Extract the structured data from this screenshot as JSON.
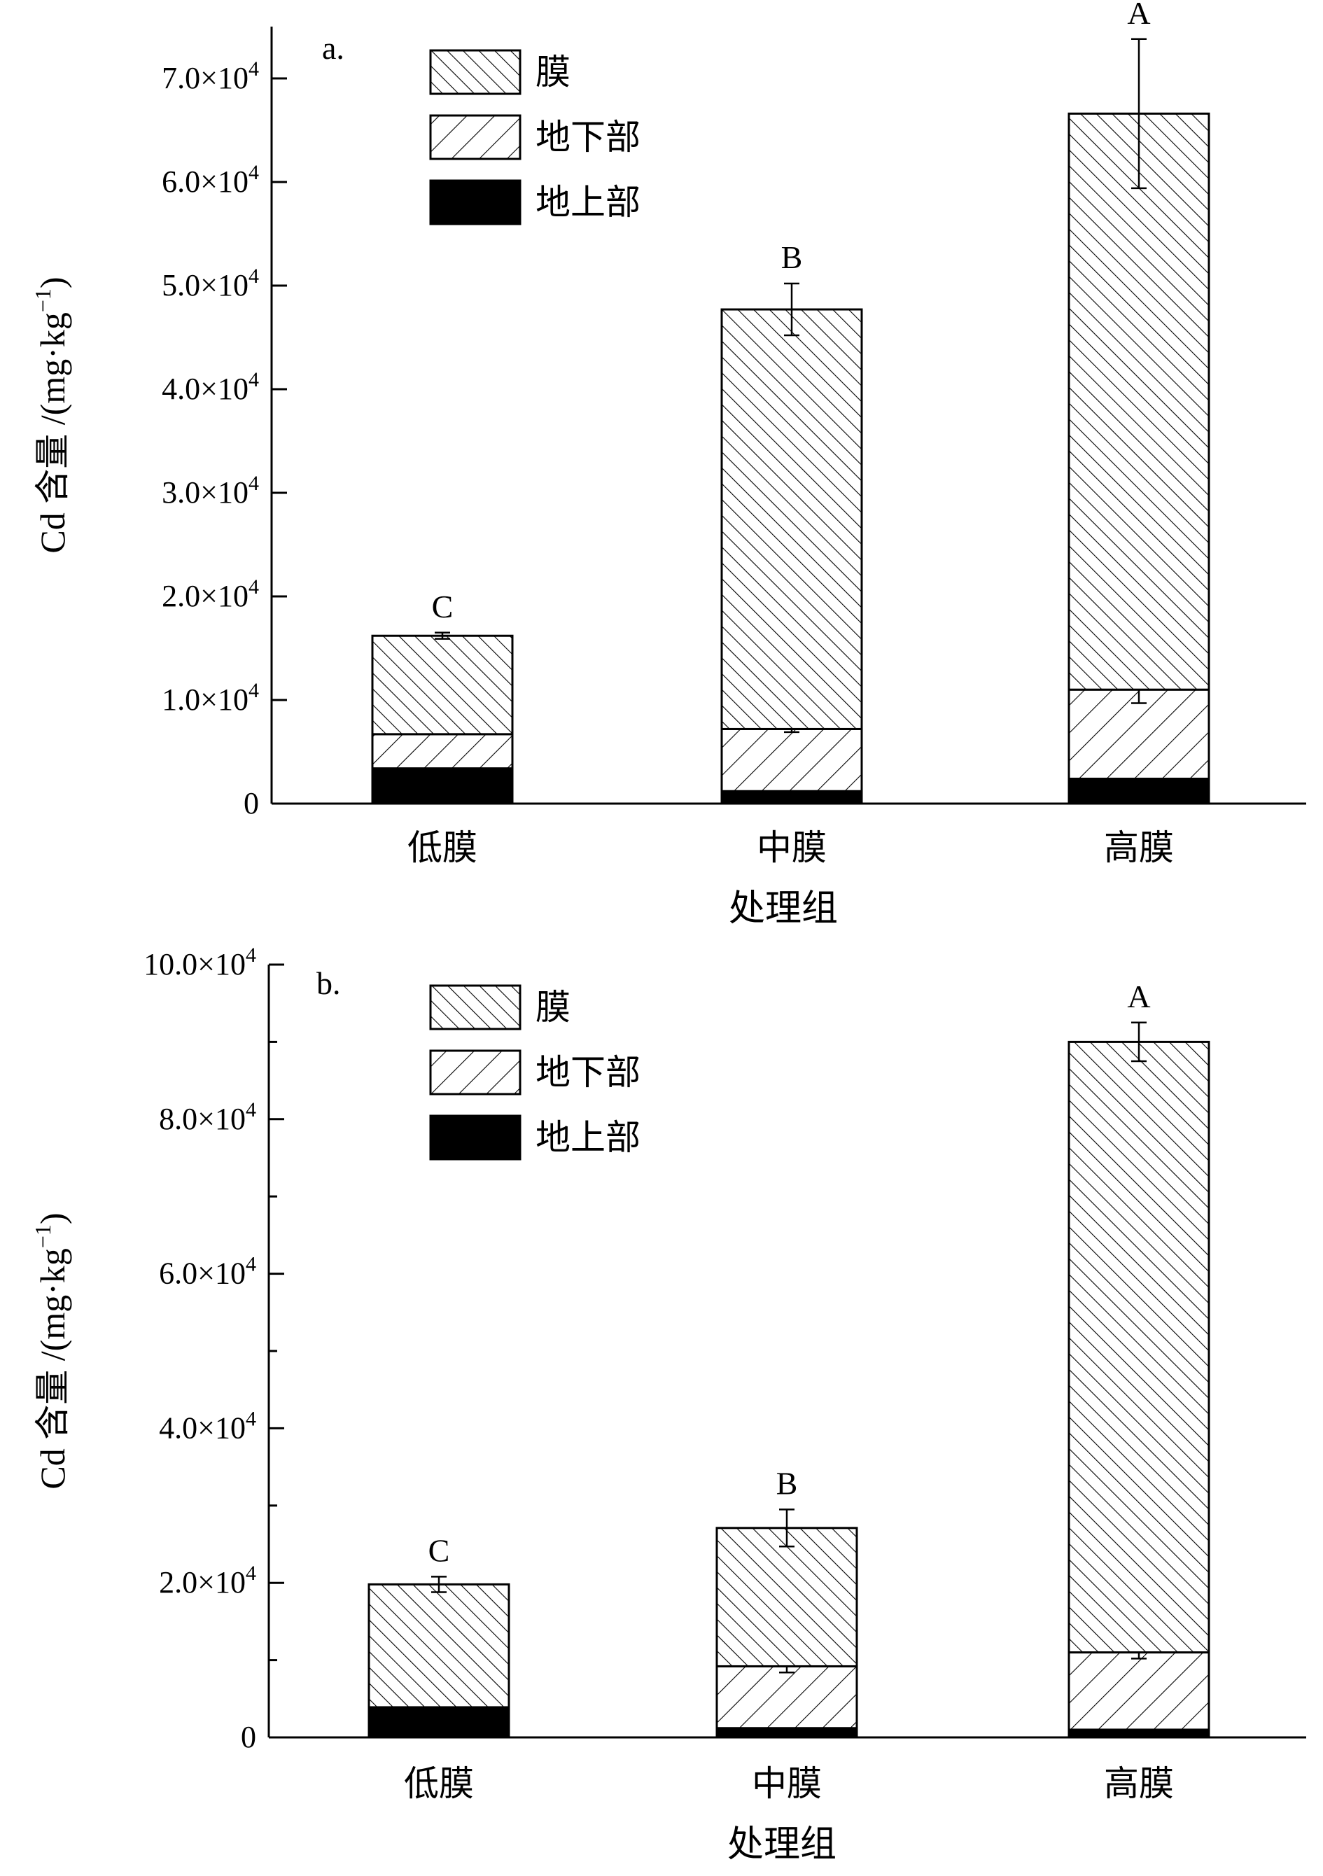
{
  "chart_data": [
    {
      "type": "bar",
      "stacked": true,
      "panel_label": "a.",
      "xlabel": "处理组",
      "ylabel": "Cd 含量 /(mg·kg-1)",
      "ylabel_main": "Cd 含量 /(mg·kg",
      "ylabel_sup": "−1",
      "ylabel_tail": ")",
      "ylim": [
        0,
        75000
      ],
      "yticks": [
        {
          "value": 0,
          "mantissa": "0",
          "label": "0"
        },
        {
          "value": 10000,
          "mantissa": "1.0",
          "label": "1.0×10^4"
        },
        {
          "value": 20000,
          "mantissa": "2.0",
          "label": "2.0×10^4"
        },
        {
          "value": 30000,
          "mantissa": "3.0",
          "label": "3.0×10^4"
        },
        {
          "value": 40000,
          "mantissa": "4.0",
          "label": "4.0×10^4"
        },
        {
          "value": 50000,
          "mantissa": "5.0",
          "label": "5.0×10^4"
        },
        {
          "value": 60000,
          "mantissa": "6.0",
          "label": "6.0×10^4"
        },
        {
          "value": 70000,
          "mantissa": "7.0",
          "label": "7.0×10^4"
        }
      ],
      "categories": [
        "低膜",
        "中膜",
        "高膜"
      ],
      "letters": [
        "C",
        "B",
        "A"
      ],
      "legend_position": "top-left",
      "series": [
        {
          "name": "地上部",
          "pattern": "solid",
          "values": [
            3400,
            1200,
            2400
          ],
          "errors": [
            1000,
            0,
            0
          ]
        },
        {
          "name": "地下部",
          "pattern": "hatch-up",
          "values": [
            3300,
            6000,
            8600
          ],
          "errors": [
            0,
            300,
            1300
          ]
        },
        {
          "name": "膜",
          "pattern": "hatch-down",
          "values": [
            9500,
            40500,
            55600
          ],
          "errors": [
            300,
            2500,
            7200
          ]
        }
      ],
      "legend_order": [
        "膜",
        "地下部",
        "地上部"
      ]
    },
    {
      "type": "bar",
      "stacked": true,
      "panel_label": "b.",
      "xlabel": "处理组",
      "ylabel": "Cd 含量 /(mg·kg-1)",
      "ylabel_main": "Cd 含量 /(mg·kg",
      "ylabel_sup": "−1",
      "ylabel_tail": ")",
      "ylim": [
        0,
        100000
      ],
      "yticks": [
        {
          "value": 0,
          "mantissa": "0",
          "label": "0"
        },
        {
          "value": 20000,
          "mantissa": "2.0",
          "label": "2.0×10^4"
        },
        {
          "value": 40000,
          "mantissa": "4.0",
          "label": "4.0×10^4"
        },
        {
          "value": 60000,
          "mantissa": "6.0",
          "label": "6.0×10^4"
        },
        {
          "value": 80000,
          "mantissa": "8.0",
          "label": "8.0×10^4"
        },
        {
          "value": 100000,
          "mantissa": "10.0",
          "label": "10.0×10^4"
        }
      ],
      "minor_yticks": [
        10000,
        30000,
        50000,
        70000,
        90000
      ],
      "categories": [
        "低膜",
        "中膜",
        "高膜"
      ],
      "letters": [
        "C",
        "B",
        "A"
      ],
      "legend_position": "top-left",
      "series": [
        {
          "name": "地上部",
          "pattern": "solid",
          "values": [
            3900,
            1200,
            1000
          ],
          "errors": [
            0,
            0,
            0
          ]
        },
        {
          "name": "地下部",
          "pattern": "hatch-up",
          "values": [
            0,
            8000,
            10000
          ],
          "errors": [
            0,
            800,
            800
          ]
        },
        {
          "name": "膜",
          "pattern": "hatch-down",
          "values": [
            15900,
            17900,
            79000
          ],
          "errors": [
            1000,
            2400,
            2500
          ]
        }
      ],
      "legend_order": [
        "膜",
        "地下部",
        "地上部"
      ]
    }
  ]
}
